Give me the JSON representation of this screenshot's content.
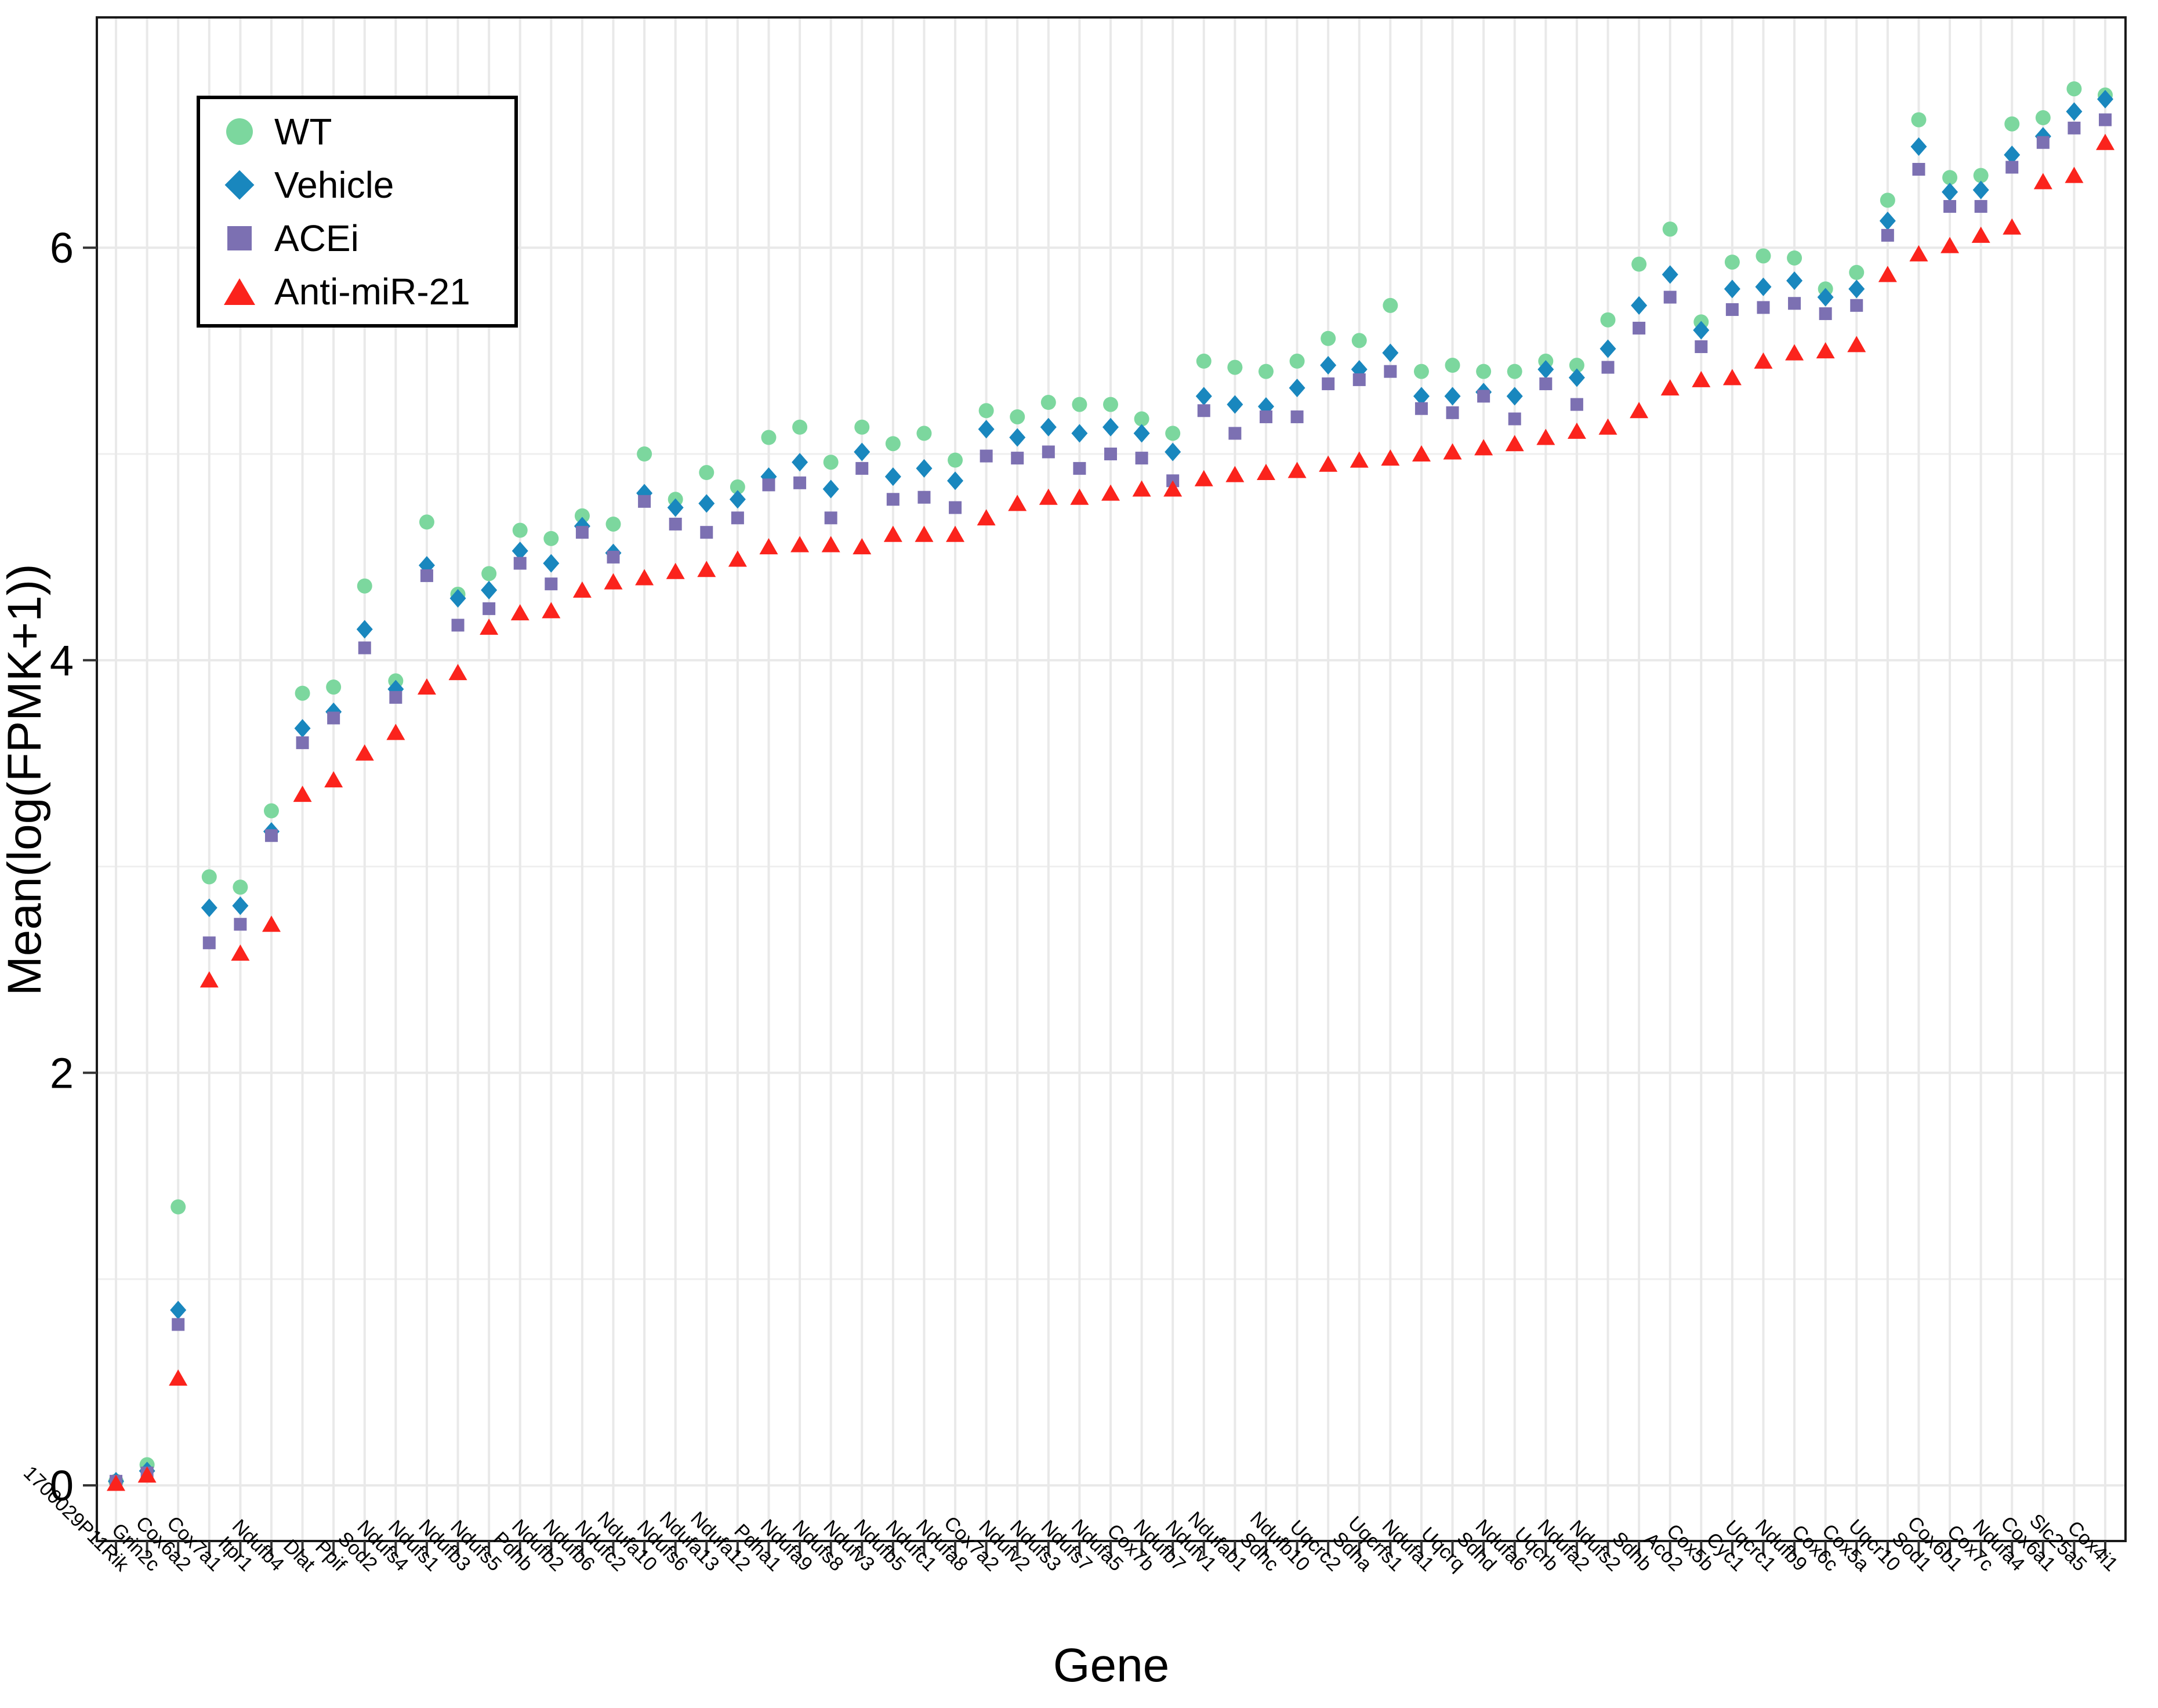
{
  "chart_data": {
    "type": "scatter",
    "title": "",
    "xlabel": "Gene",
    "ylabel": "Mean(log(FPMK+1))",
    "y_ticks": [
      0,
      2,
      4,
      6
    ],
    "y_minor_gridlines": [
      1,
      3,
      5
    ],
    "ylim": [
      -0.27,
      7.12
    ],
    "grid": "on",
    "legend_position": "top-left-inside",
    "x_label_rotation_deg": 45,
    "categories": [
      "1700029P11Rik",
      "Grin2c",
      "Cox6a2",
      "Cox7a1",
      "Itpr1",
      "Ndufb4",
      "Dlat",
      "Ppif",
      "Sod2",
      "Ndufs4",
      "Ndufs1",
      "Ndufb3",
      "Ndufs5",
      "Pdhb",
      "Ndufb2",
      "Ndufb6",
      "Ndufc2",
      "Ndufa10",
      "Ndufs6",
      "Ndufa13",
      "Ndufa12",
      "Pdha1",
      "Ndufa9",
      "Ndufs8",
      "Ndufv3",
      "Ndufb5",
      "Ndufc1",
      "Ndufa8",
      "Cox7a2",
      "Ndufv2",
      "Ndufs3",
      "Ndufs7",
      "Ndufa5",
      "Cox7b",
      "Ndufb7",
      "Ndufv1",
      "Ndufab1",
      "Sdhc",
      "Ndufb10",
      "Uqcrc2",
      "Sdha",
      "Uqcrfs1",
      "Ndufa1",
      "Uqcrq",
      "Sdhd",
      "Ndufa6",
      "Uqcrb",
      "Ndufa2",
      "Ndufs2",
      "Sdhb",
      "Aco2",
      "Cox5b",
      "Cyc1",
      "Uqcrc1",
      "Ndufb9",
      "Cox6c",
      "Cox5a",
      "Uqcr10",
      "Sod1",
      "Cox6b1",
      "Cox7c",
      "Ndufa4",
      "Cox6a1",
      "Slc25a5",
      "Cox4i1"
    ],
    "series": [
      {
        "name": "WT",
        "marker": "circle",
        "color": "#7CD79E",
        "values": [
          0.02,
          0.1,
          1.35,
          2.95,
          2.9,
          3.27,
          3.84,
          3.87,
          4.36,
          3.9,
          4.67,
          4.32,
          4.42,
          4.63,
          4.59,
          4.7,
          4.66,
          5.0,
          4.78,
          4.91,
          4.84,
          5.08,
          5.13,
          4.96,
          5.13,
          5.05,
          5.1,
          4.97,
          5.21,
          5.18,
          5.25,
          5.24,
          5.24,
          5.17,
          5.1,
          5.45,
          5.42,
          5.4,
          5.45,
          5.56,
          5.55,
          5.72,
          5.4,
          5.43,
          5.4,
          5.4,
          5.45,
          5.43,
          5.65,
          5.92,
          6.09,
          5.64,
          5.93,
          5.96,
          5.95,
          5.8,
          5.88,
          6.23,
          6.62,
          6.34,
          6.35,
          6.6,
          6.63,
          6.77,
          6.74
        ]
      },
      {
        "name": "Vehicle",
        "marker": "diamond",
        "color": "#1987BE",
        "values": [
          0.02,
          0.07,
          0.85,
          2.8,
          2.81,
          3.17,
          3.67,
          3.75,
          4.15,
          3.86,
          4.46,
          4.3,
          4.34,
          4.53,
          4.47,
          4.65,
          4.52,
          4.81,
          4.74,
          4.76,
          4.78,
          4.89,
          4.96,
          4.83,
          5.01,
          4.89,
          4.93,
          4.87,
          5.12,
          5.08,
          5.13,
          5.1,
          5.13,
          5.1,
          5.01,
          5.28,
          5.24,
          5.23,
          5.32,
          5.43,
          5.41,
          5.49,
          5.28,
          5.28,
          5.3,
          5.28,
          5.41,
          5.37,
          5.51,
          5.72,
          5.87,
          5.6,
          5.8,
          5.81,
          5.84,
          5.76,
          5.8,
          6.13,
          6.49,
          6.27,
          6.28,
          6.45,
          6.54,
          6.66,
          6.72
        ]
      },
      {
        "name": "ACEi",
        "marker": "square",
        "color": "#7C70B2",
        "values": [
          0.02,
          0.06,
          0.78,
          2.63,
          2.72,
          3.15,
          3.6,
          3.72,
          4.06,
          3.82,
          4.41,
          4.17,
          4.25,
          4.47,
          4.37,
          4.62,
          4.5,
          4.77,
          4.66,
          4.62,
          4.69,
          4.85,
          4.86,
          4.69,
          4.93,
          4.78,
          4.79,
          4.74,
          4.99,
          4.98,
          5.01,
          4.93,
          5.0,
          4.98,
          4.87,
          5.21,
          5.1,
          5.18,
          5.18,
          5.34,
          5.36,
          5.4,
          5.22,
          5.2,
          5.28,
          5.17,
          5.34,
          5.24,
          5.42,
          5.61,
          5.76,
          5.52,
          5.7,
          5.71,
          5.73,
          5.68,
          5.72,
          6.06,
          6.38,
          6.2,
          6.2,
          6.39,
          6.51,
          6.58,
          6.62
        ]
      },
      {
        "name": "Anti-miR-21",
        "marker": "triangle",
        "color": "#FB231C",
        "values": [
          0.01,
          0.05,
          0.52,
          2.45,
          2.58,
          2.72,
          3.35,
          3.42,
          3.55,
          3.65,
          3.87,
          3.94,
          4.16,
          4.23,
          4.24,
          4.34,
          4.38,
          4.4,
          4.43,
          4.44,
          4.49,
          4.55,
          4.56,
          4.56,
          4.55,
          4.61,
          4.61,
          4.61,
          4.69,
          4.76,
          4.79,
          4.79,
          4.81,
          4.83,
          4.83,
          4.88,
          4.9,
          4.91,
          4.92,
          4.95,
          4.97,
          4.98,
          5.0,
          5.01,
          5.03,
          5.05,
          5.08,
          5.11,
          5.13,
          5.21,
          5.32,
          5.36,
          5.37,
          5.45,
          5.49,
          5.5,
          5.53,
          5.87,
          5.97,
          6.01,
          6.06,
          6.1,
          6.32,
          6.35,
          6.51
        ]
      }
    ]
  }
}
